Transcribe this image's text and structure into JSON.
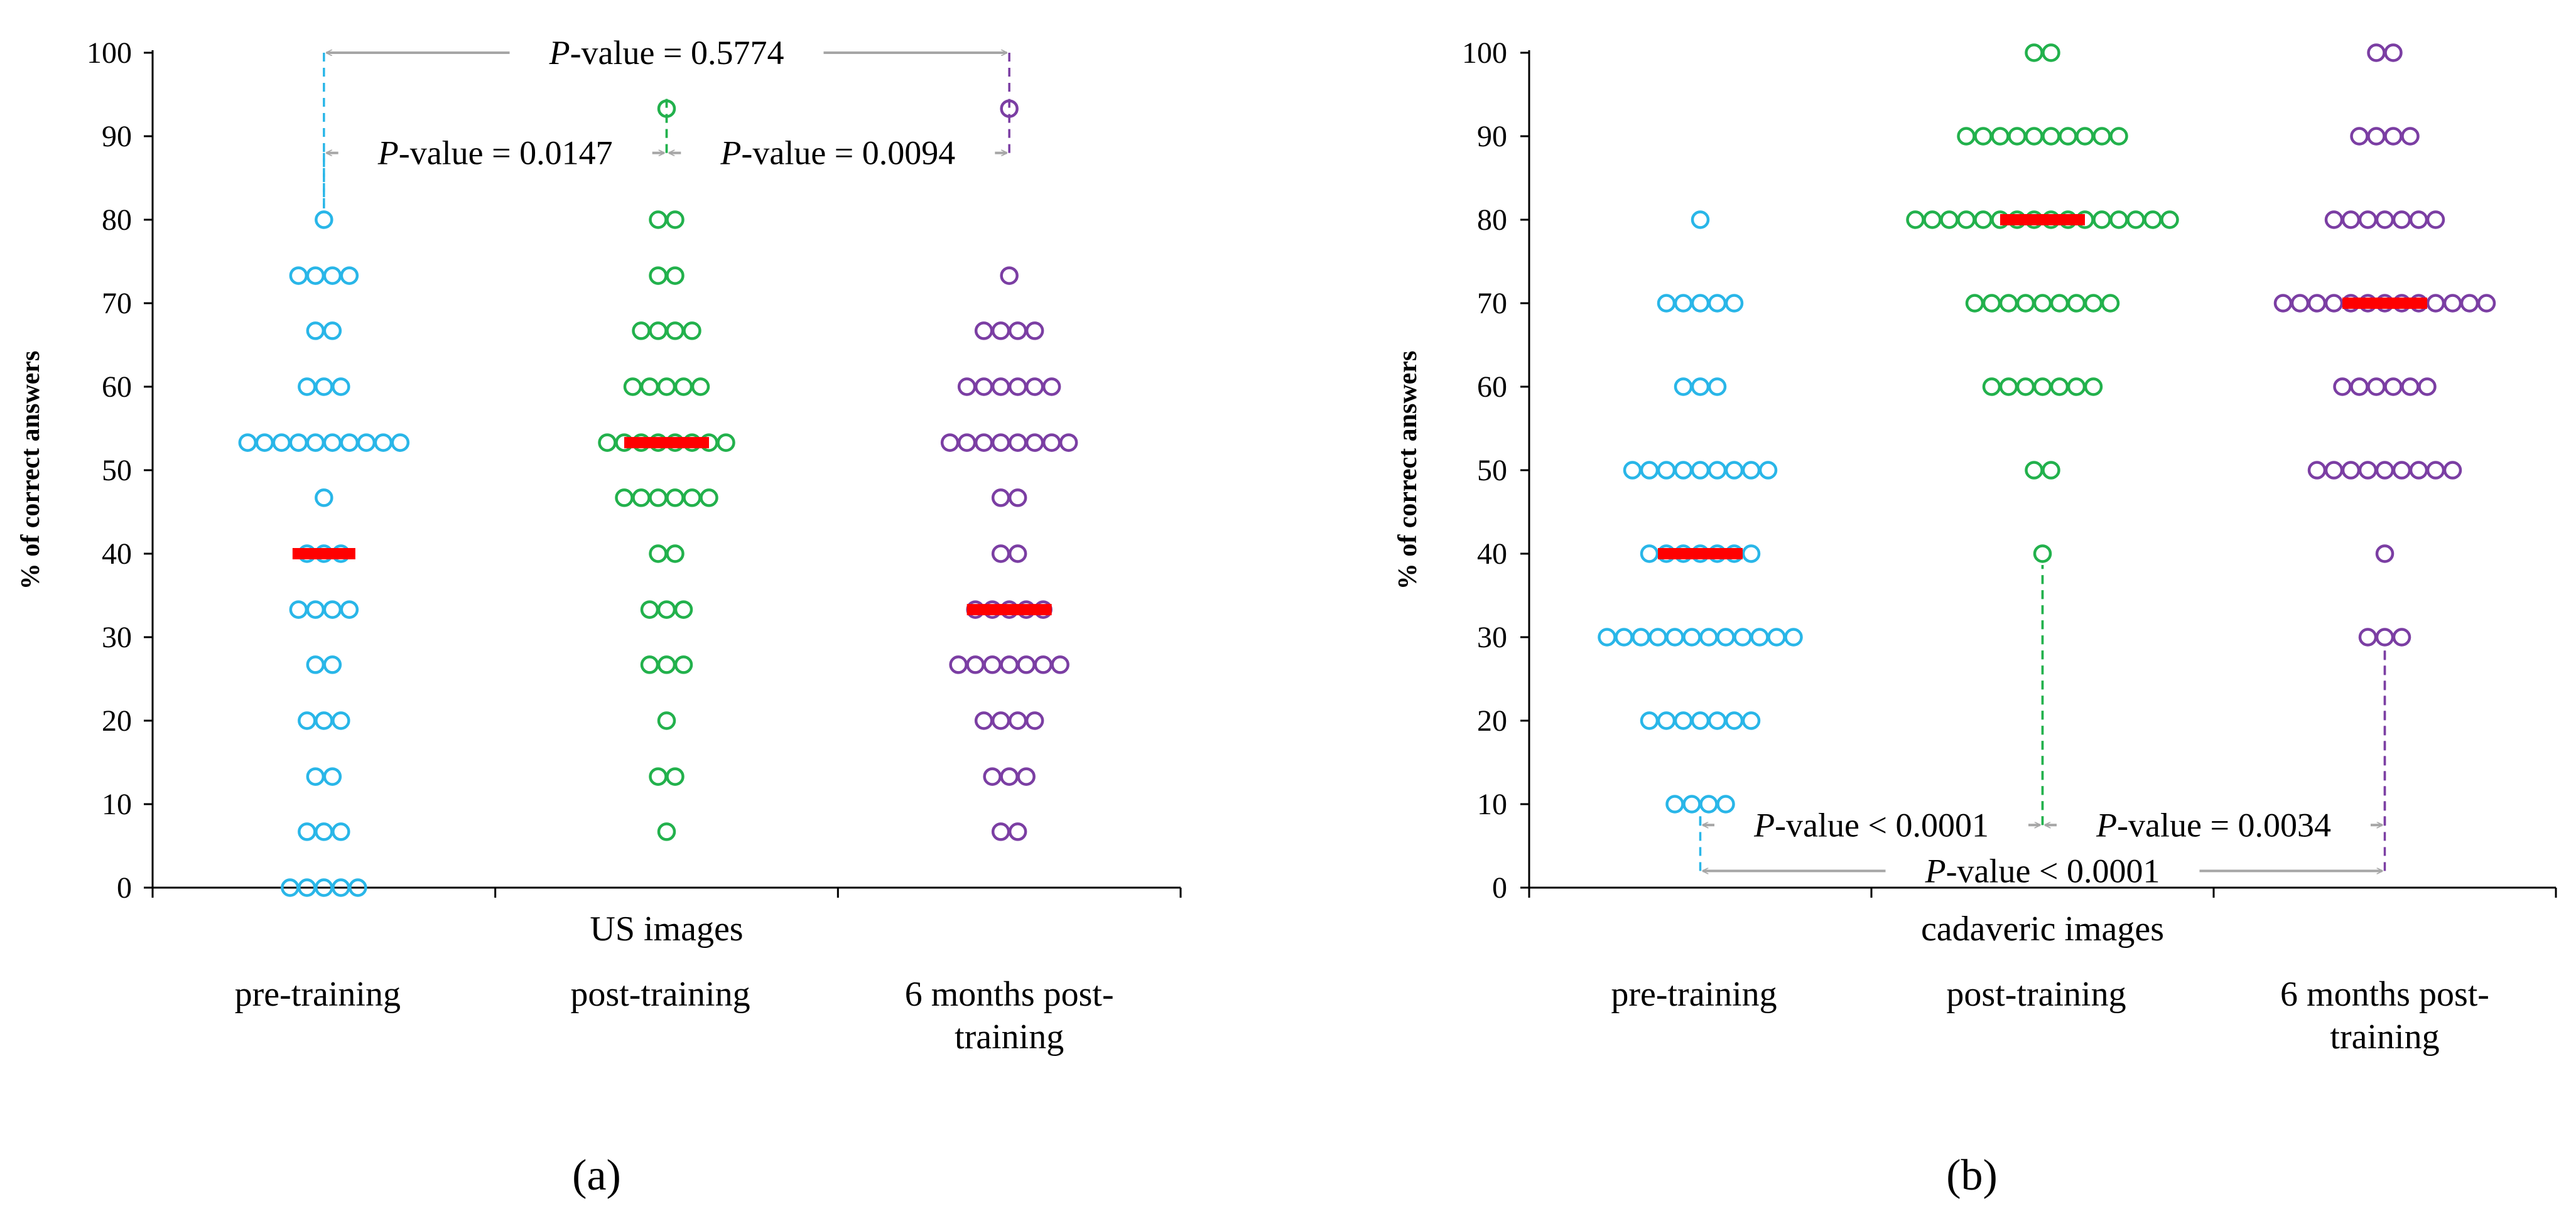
{
  "figure_labels": {
    "a": "(a)",
    "b": "(b)"
  },
  "chart_data": [
    {
      "type": "scatter",
      "panel": "(a)",
      "title": "",
      "xlabel": "US images",
      "ylabel": "% of correct answers",
      "ylim": [
        0,
        100
      ],
      "yticks": [
        "0",
        "10",
        "20",
        "30",
        "40",
        "50",
        "60",
        "70",
        "80",
        "90",
        "100"
      ],
      "categories": [
        [
          "pre-training"
        ],
        [
          "post-training"
        ],
        [
          "6 months post-",
          "training"
        ]
      ],
      "colors": [
        "#29b6e8",
        "#22b14c",
        "#7b3ea3"
      ],
      "median_color": "#ff0000",
      "series": [
        {
          "name": "pre-training",
          "values": [
            0,
            0,
            0,
            0,
            0,
            6.7,
            6.7,
            6.7,
            13.3,
            13.3,
            20,
            20,
            20,
            26.7,
            26.7,
            33.3,
            33.3,
            33.3,
            33.3,
            40,
            40,
            40,
            46.7,
            53.3,
            53.3,
            53.3,
            53.3,
            53.3,
            53.3,
            53.3,
            53.3,
            53.3,
            53.3,
            60,
            60,
            60,
            66.7,
            66.7,
            73.3,
            73.3,
            73.3,
            73.3,
            80
          ],
          "median": 40
        },
        {
          "name": "post-training",
          "values": [
            6.7,
            13.3,
            13.3,
            20,
            26.7,
            26.7,
            26.7,
            33.3,
            33.3,
            33.3,
            40,
            40,
            46.7,
            46.7,
            46.7,
            46.7,
            46.7,
            46.7,
            53.3,
            53.3,
            53.3,
            53.3,
            53.3,
            53.3,
            53.3,
            53.3,
            60,
            60,
            60,
            60,
            60,
            66.7,
            66.7,
            66.7,
            66.7,
            73.3,
            73.3,
            80,
            80,
            93.3
          ],
          "median": 53.3
        },
        {
          "name": "6 months post-training",
          "values": [
            6.7,
            6.7,
            13.3,
            13.3,
            13.3,
            20,
            20,
            20,
            20,
            26.7,
            26.7,
            26.7,
            26.7,
            26.7,
            26.7,
            26.7,
            33.3,
            33.3,
            33.3,
            33.3,
            33.3,
            40,
            40,
            46.7,
            46.7,
            53.3,
            53.3,
            53.3,
            53.3,
            53.3,
            53.3,
            53.3,
            53.3,
            60,
            60,
            60,
            60,
            60,
            60,
            66.7,
            66.7,
            66.7,
            66.7,
            73.3,
            93.3
          ],
          "median": 33.3
        }
      ],
      "comparisons": [
        {
          "label_prefix": "P",
          "label_rest": "-value = 0.5774",
          "from": 0,
          "to": 2,
          "y": 100
        },
        {
          "label_prefix": "P",
          "label_rest": "-value = 0.0147",
          "from": 0,
          "to": 1,
          "y": 88
        },
        {
          "label_prefix": "P",
          "label_rest": "-value = 0.0094",
          "from": 1,
          "to": 2,
          "y": 88
        }
      ]
    },
    {
      "type": "scatter",
      "panel": "(b)",
      "title": "",
      "xlabel": "cadaveric images",
      "ylabel": "% of correct answers",
      "ylim": [
        0,
        100
      ],
      "yticks": [
        "0",
        "10",
        "20",
        "30",
        "40",
        "50",
        "60",
        "70",
        "80",
        "90",
        "100"
      ],
      "categories": [
        [
          "pre-training"
        ],
        [
          "post-training"
        ],
        [
          "6 months post-",
          "training"
        ]
      ],
      "colors": [
        "#29b6e8",
        "#22b14c",
        "#7b3ea3"
      ],
      "median_color": "#ff0000",
      "series": [
        {
          "name": "pre-training",
          "values": [
            10,
            10,
            10,
            10,
            20,
            20,
            20,
            20,
            20,
            20,
            20,
            30,
            30,
            30,
            30,
            30,
            30,
            30,
            30,
            30,
            30,
            30,
            30,
            40,
            40,
            40,
            40,
            40,
            40,
            40,
            50,
            50,
            50,
            50,
            50,
            50,
            50,
            50,
            50,
            60,
            60,
            60,
            70,
            70,
            70,
            70,
            70,
            80
          ],
          "median": 40
        },
        {
          "name": "post-training",
          "values": [
            40,
            50,
            50,
            60,
            60,
            60,
            60,
            60,
            60,
            60,
            70,
            70,
            70,
            70,
            70,
            70,
            70,
            70,
            70,
            80,
            80,
            80,
            80,
            80,
            80,
            80,
            80,
            80,
            80,
            80,
            80,
            80,
            80,
            80,
            80,
            90,
            90,
            90,
            90,
            90,
            90,
            90,
            90,
            90,
            90,
            100,
            100
          ],
          "median": 80
        },
        {
          "name": "6 months post-training",
          "values": [
            30,
            30,
            30,
            40,
            50,
            50,
            50,
            50,
            50,
            50,
            50,
            50,
            50,
            60,
            60,
            60,
            60,
            60,
            60,
            70,
            70,
            70,
            70,
            70,
            70,
            70,
            70,
            70,
            70,
            70,
            70,
            70,
            80,
            80,
            80,
            80,
            80,
            80,
            80,
            90,
            90,
            90,
            90,
            100,
            100
          ],
          "median": 70
        }
      ],
      "comparisons": [
        {
          "label_prefix": "P",
          "label_rest": "-value < 0.0001",
          "from": 0,
          "to": 1,
          "y": 7.5
        },
        {
          "label_prefix": "P",
          "label_rest": "-value = 0.0034",
          "from": 1,
          "to": 2,
          "y": 7.5
        },
        {
          "label_prefix": "P",
          "label_rest": "-value < 0.0001",
          "from": 0,
          "to": 2,
          "y": 2
        }
      ]
    }
  ]
}
